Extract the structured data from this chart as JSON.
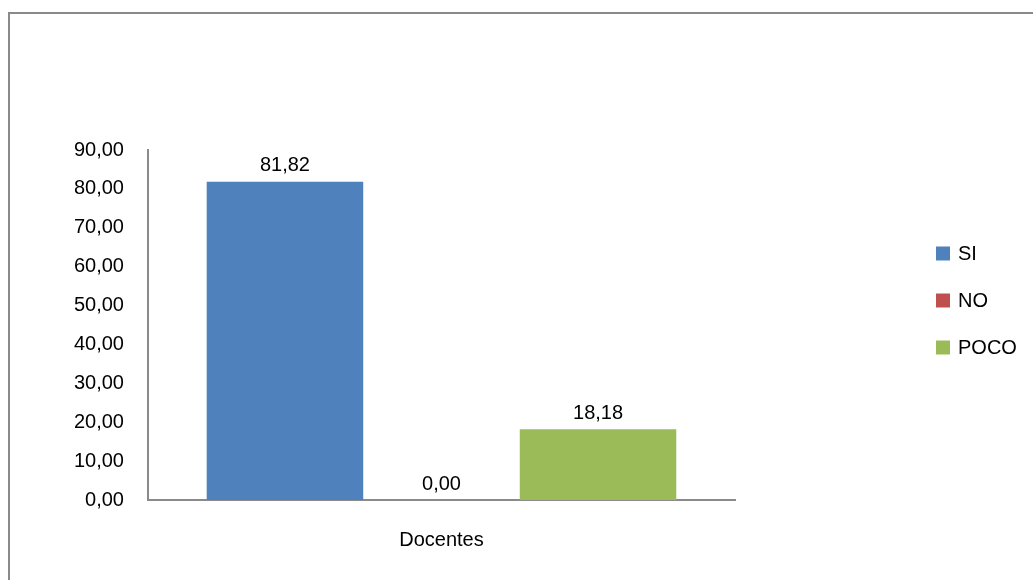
{
  "chart_data": {
    "type": "bar",
    "categories": [
      "Docentes"
    ],
    "series": [
      {
        "name": "SI",
        "color": "#4f81bd",
        "values": [
          81.82
        ],
        "value_labels": [
          "81,82"
        ]
      },
      {
        "name": "NO",
        "color": "#c0504d",
        "values": [
          0
        ],
        "value_labels": [
          "0,00"
        ]
      },
      {
        "name": "POCO",
        "color": "#9bbb59",
        "values": [
          18.18
        ],
        "value_labels": [
          "18,18"
        ]
      }
    ],
    "ylim": [
      0,
      90
    ],
    "yticks": [
      {
        "value": 0,
        "label": "0,00"
      },
      {
        "value": 10,
        "label": "10,00"
      },
      {
        "value": 20,
        "label": "20,00"
      },
      {
        "value": 30,
        "label": "30,00"
      },
      {
        "value": 40,
        "label": "40,00"
      },
      {
        "value": 50,
        "label": "50,00"
      },
      {
        "value": 60,
        "label": "60,00"
      },
      {
        "value": 70,
        "label": "70,00"
      },
      {
        "value": 80,
        "label": "80,00"
      },
      {
        "value": 90,
        "label": "90,00"
      }
    ],
    "grid": false,
    "legend": "right"
  }
}
